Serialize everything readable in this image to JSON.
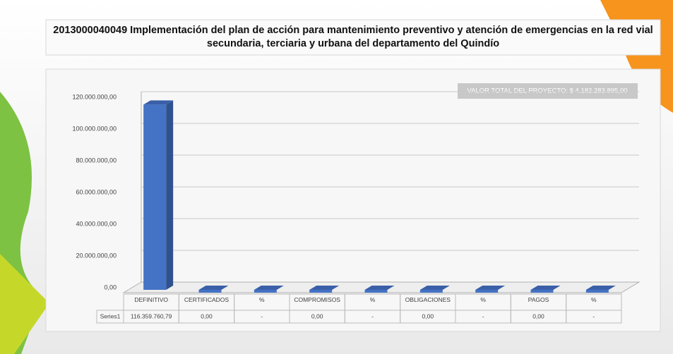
{
  "chart_data": {
    "type": "bar",
    "title": "2013000040049  Implementación del plan de acción para mantenimiento preventivo y atención de emergencias en la red vial secundaria, terciaria y urbana del departamento del Quindío",
    "annotation": "VALOR TOTAL DEL PROYECTO: $ 4.182.283.895,00",
    "categories": [
      "DEFINITIVO",
      "CERTIFICADOS",
      "%",
      "COMPROMISOS",
      "%",
      "OBLIGACIONES",
      "%",
      "PAGOS",
      "%"
    ],
    "series": [
      {
        "name": "Series1",
        "color": "#4472c4",
        "values": [
          116359760.79,
          0,
          0,
          0,
          0,
          0,
          0,
          0,
          0
        ],
        "value_labels": [
          "116.359.760,79",
          "0,00",
          "-",
          "0,00",
          "-",
          "0,00",
          "-",
          "0,00",
          "-"
        ]
      }
    ],
    "ylim": [
      0,
      120000000
    ],
    "yticks": [
      {
        "value": 0,
        "label": "0,00"
      },
      {
        "value": 20000000,
        "label": "20.000.000,00"
      },
      {
        "value": 40000000,
        "label": "40.000.000,00"
      },
      {
        "value": 60000000,
        "label": "60.000.000,00"
      },
      {
        "value": 80000000,
        "label": "80.000.000,00"
      },
      {
        "value": 100000000,
        "label": "100.000.000,00"
      },
      {
        "value": 120000000,
        "label": "120.000.000,00"
      }
    ],
    "grid": true
  }
}
